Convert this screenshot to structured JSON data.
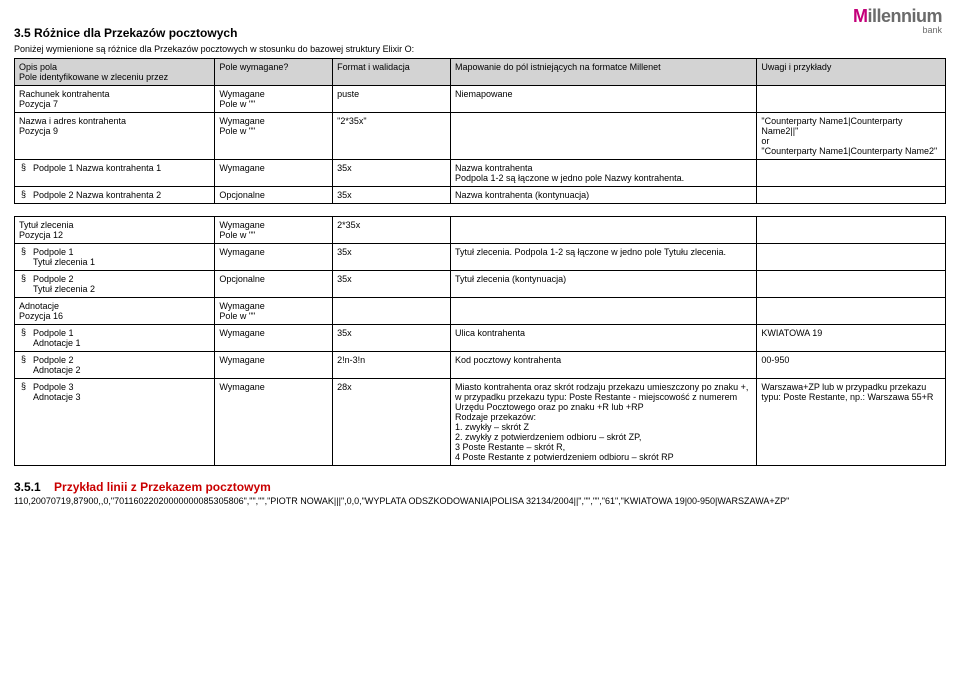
{
  "logo": {
    "brand_m": "M",
    "brand_rest": "illennium",
    "bank": "bank",
    "brand_m_color": "#c4007a",
    "rest_color": "#6b6b6b"
  },
  "heading": "3.5  Różnice dla Przekazów pocztowych",
  "intro": "Poniżej wymienione są różnice dla Przekazów pocztowych w stosunku do bazowej struktury Elixir O:",
  "headers": {
    "c1a": "Opis pola",
    "c1b": "Pole identyfikowane w zleceniu przez",
    "c2": "Pole wymagane?",
    "c3": "Format i walidacja",
    "c4": "Mapowanie do pól istniejących na formatce Millenet",
    "c5": "Uwagi i przykłady"
  },
  "rows1": [
    {
      "c1": "Rachunek kontrahenta\nPozycja 7",
      "c2": "Wymagane\nPole w \"\"",
      "c3": "puste",
      "c4": "Niemapowane",
      "c5": ""
    },
    {
      "c1": "Nazwa i adres kontrahenta\nPozycja 9",
      "c2": "Wymagane\nPole w \"\"",
      "c3": "\"2*35x\"",
      "c4": "",
      "c5": "\"Counterparty Name1|Counterparty Name2||\"\nor\n\"Counterparty Name1|Counterparty Name2\""
    },
    {
      "sect": true,
      "c1": "Podpole 1 Nazwa kontrahenta 1",
      "c2": "Wymagane",
      "c3": "35x",
      "c4": "Nazwa kontrahenta\nPodpola 1-2 są łączone w jedno pole Nazwy kontrahenta.",
      "c5": ""
    },
    {
      "sect": true,
      "c1": "Podpole 2 Nazwa kontrahenta 2",
      "c2": "Opcjonalne",
      "c3": "35x",
      "c4": "Nazwa kontrahenta (kontynuacja)",
      "c5": ""
    }
  ],
  "rows2": [
    {
      "c1": "Tytuł zlecenia\nPozycja 12",
      "c2": "Wymagane\nPole w \"\"",
      "c3": "2*35x",
      "c4": "",
      "c5": ""
    },
    {
      "sect": true,
      "c1": "Podpole 1\nTytuł zlecenia 1",
      "c2": "Wymagane",
      "c3": "35x",
      "c4": "Tytuł zlecenia. Podpola 1-2 są łączone w jedno pole Tytułu zlecenia.",
      "c5": ""
    },
    {
      "sect": true,
      "c1": "Podpole 2\nTytuł zlecenia 2",
      "c2": "Opcjonalne",
      "c3": "35x",
      "c4": "Tytuł zlecenia (kontynuacja)",
      "c5": ""
    },
    {
      "c1": "Adnotacje\nPozycja 16",
      "c2": "Wymagane\nPole w \"\"",
      "c3": "",
      "c4": "",
      "c5": ""
    },
    {
      "sect": true,
      "c1": "Podpole 1\nAdnotacje 1",
      "c2": "Wymagane",
      "c3": "35x",
      "c4": "Ulica kontrahenta",
      "c5": "KWIATOWA 19"
    },
    {
      "sect": true,
      "c1": "Podpole 2\nAdnotacje 2",
      "c2": "Wymagane",
      "c3": "2!n-3!n",
      "c4": "Kod pocztowy kontrahenta",
      "c5": "00-950"
    },
    {
      "sect": true,
      "c1": "Podpole 3\nAdnotacje 3",
      "c2": "Wymagane",
      "c3": "28x",
      "c4": "Miasto kontrahenta oraz skrót rodzaju przekazu umieszczony po znaku +, w przypadku przekazu typu: Poste Restante - miejscowość z numerem Urzędu Pocztowego oraz po znaku +R lub +RP\nRodzaje przekazów:\n1. zwykły – skrót Z\n2. zwykły z potwierdzeniem odbioru – skrót ZP,\n3 Poste Restante – skrót R,\n4 Poste Restante z potwierdzeniem odbioru – skrót RP",
      "c5": "Warszawa+ZP lub w przypadku przekazu typu: Poste Restante, np.: Warszawa 55+R"
    }
  ],
  "sub": {
    "num": "3.5.1",
    "title": "Przykład linii z Przekazem pocztowym"
  },
  "example": "110,20070719,87900,,0,\"70116022020000000085305806\",\"\",\"\",\"PIOTR NOWAK|||\",0,0,\"WYPLATA ODSZKODOWANIA|POLISA 32134/2004||\",\"\",\"\",\"61\",\"KWIATOWA 19|00-950|WARSZAWA+ZP\""
}
